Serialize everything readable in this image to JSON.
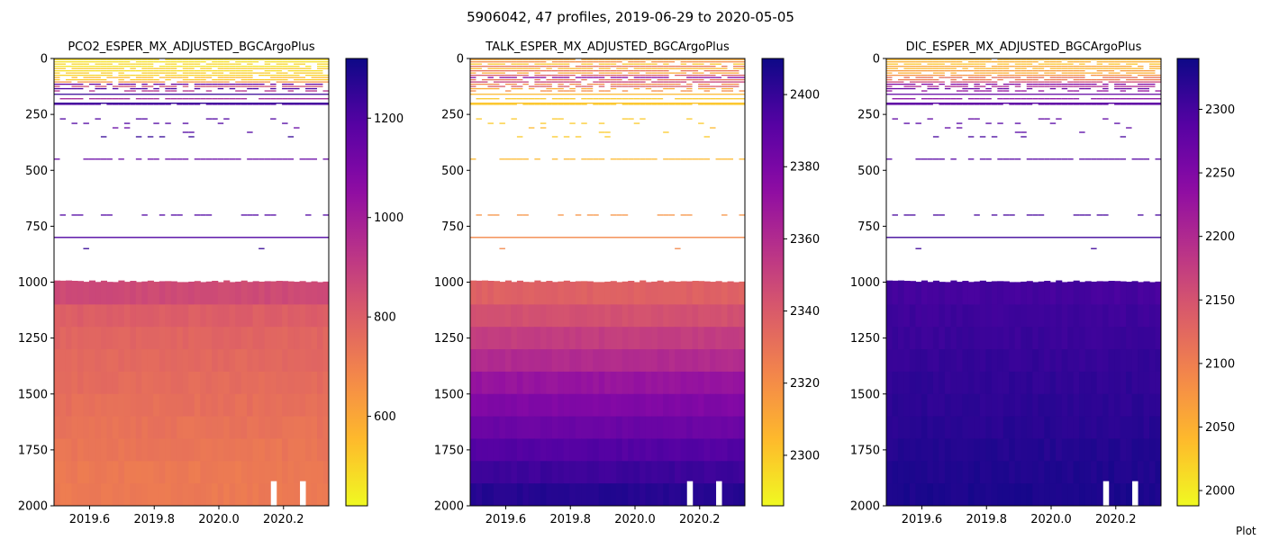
{
  "figure_title": "5906042, 47 profiles, 2019-06-29 to 2020-05-05",
  "footer_text": "Plot",
  "chart_data": [
    {
      "type": "heatmap",
      "title": "PCO2_ESPER_MX_ADJUSTED_BGCArgoPlus",
      "colormap": "plasma_r",
      "x_axis": {
        "label": "",
        "range": [
          2019.49,
          2020.34
        ],
        "ticks": [
          2019.6,
          2019.8,
          2020.0,
          2020.2
        ],
        "tick_labels": [
          "2019.6",
          "2019.8",
          "2020.0",
          "2020.2"
        ]
      },
      "y_axis": {
        "label": "",
        "range": [
          2000,
          0
        ],
        "inverted": true,
        "ticks": [
          0,
          250,
          500,
          750,
          1000,
          1250,
          1500,
          1750,
          2000
        ],
        "tick_labels": [
          "0",
          "250",
          "500",
          "750",
          "1000",
          "1250",
          "1500",
          "1750",
          "2000"
        ]
      },
      "colorbar": {
        "range": [
          420,
          1320
        ],
        "ticks": [
          600,
          800,
          1000,
          1200
        ],
        "tick_labels": [
          "600",
          "800",
          "1000",
          "1200"
        ]
      },
      "shallow_lines": [
        {
          "depth": 5,
          "value": 480,
          "coverage": 0.9
        },
        {
          "depth": 15,
          "value": 470,
          "coverage": 0.9
        },
        {
          "depth": 25,
          "value": 500,
          "coverage": 0.7
        },
        {
          "depth": 35,
          "value": 460,
          "coverage": 0.9
        },
        {
          "depth": 45,
          "value": 520,
          "coverage": 0.8
        },
        {
          "depth": 55,
          "value": 480,
          "coverage": 0.9
        },
        {
          "depth": 65,
          "value": 520,
          "coverage": 0.7
        },
        {
          "depth": 75,
          "value": 500,
          "coverage": 0.85
        },
        {
          "depth": 85,
          "value": 560,
          "coverage": 0.8
        },
        {
          "depth": 95,
          "value": 520,
          "coverage": 0.8
        },
        {
          "depth": 105,
          "value": 650,
          "coverage": 0.8
        },
        {
          "depth": 115,
          "value": 1150,
          "coverage": 0.7
        },
        {
          "depth": 125,
          "value": 850,
          "coverage": 0.8
        },
        {
          "depth": 135,
          "value": 1200,
          "coverage": 0.5
        },
        {
          "depth": 145,
          "value": 950,
          "coverage": 0.5
        },
        {
          "depth": 160,
          "value": 1250,
          "coverage": 1.0
        },
        {
          "depth": 180,
          "value": 1000,
          "coverage": 0.8
        },
        {
          "depth": 200,
          "value": 1250,
          "coverage": 1.0
        },
        {
          "depth": 205,
          "value": 1200,
          "coverage": 0.9
        }
      ],
      "sparse_lines": [
        {
          "depth": 270,
          "value": 1200,
          "coverage": 0.1
        },
        {
          "depth": 290,
          "value": 1200,
          "coverage": 0.1
        },
        {
          "depth": 310,
          "value": 1150,
          "coverage": 0.1
        },
        {
          "depth": 330,
          "value": 1200,
          "coverage": 0.1
        },
        {
          "depth": 350,
          "value": 1250,
          "coverage": 0.1
        },
        {
          "depth": 450,
          "value": 1150,
          "coverage": 0.75
        },
        {
          "depth": 700,
          "value": 1200,
          "coverage": 0.35
        },
        {
          "depth": 800,
          "value": 1200,
          "coverage": 1.0
        },
        {
          "depth": 850,
          "value": 1250,
          "coverage": 0.05
        }
      ],
      "deep_layers": [
        {
          "top": 1000,
          "bottom": 1100,
          "value": 860
        },
        {
          "top": 1100,
          "bottom": 1200,
          "value": 800
        },
        {
          "top": 1200,
          "bottom": 1300,
          "value": 780
        },
        {
          "top": 1300,
          "bottom": 1400,
          "value": 770
        },
        {
          "top": 1400,
          "bottom": 1500,
          "value": 760
        },
        {
          "top": 1500,
          "bottom": 1600,
          "value": 750
        },
        {
          "top": 1600,
          "bottom": 1700,
          "value": 740
        },
        {
          "top": 1700,
          "bottom": 1800,
          "value": 730
        },
        {
          "top": 1800,
          "bottom": 1900,
          "value": 720
        },
        {
          "top": 1900,
          "bottom": 2000,
          "value": 720
        }
      ],
      "missing_columns": [
        2020.17,
        2020.26
      ]
    },
    {
      "type": "heatmap",
      "title": "TALK_ESPER_MX_ADJUSTED_BGCArgoPlus",
      "colormap": "plasma_r",
      "x_axis": {
        "label": "",
        "range": [
          2019.49,
          2020.34
        ],
        "ticks": [
          2019.6,
          2019.8,
          2020.0,
          2020.2
        ],
        "tick_labels": [
          "2019.6",
          "2019.8",
          "2020.0",
          "2020.2"
        ]
      },
      "y_axis": {
        "label": "",
        "range": [
          2000,
          0
        ],
        "inverted": true,
        "ticks": [
          0,
          250,
          500,
          750,
          1000,
          1250,
          1500,
          1750,
          2000
        ],
        "tick_labels": [
          "0",
          "250",
          "500",
          "750",
          "1000",
          "1250",
          "1500",
          "1750",
          "2000"
        ]
      },
      "colorbar": {
        "range": [
          2286,
          2410
        ],
        "ticks": [
          2300,
          2320,
          2340,
          2360,
          2380,
          2400
        ],
        "tick_labels": [
          "2300",
          "2320",
          "2340",
          "2360",
          "2380",
          "2400"
        ]
      },
      "shallow_lines": [
        {
          "depth": 5,
          "value": 2310,
          "coverage": 0.9
        },
        {
          "depth": 15,
          "value": 2320,
          "coverage": 0.9
        },
        {
          "depth": 25,
          "value": 2300,
          "coverage": 0.7
        },
        {
          "depth": 35,
          "value": 2330,
          "coverage": 0.9
        },
        {
          "depth": 45,
          "value": 2305,
          "coverage": 0.8
        },
        {
          "depth": 55,
          "value": 2330,
          "coverage": 0.9
        },
        {
          "depth": 65,
          "value": 2310,
          "coverage": 0.7
        },
        {
          "depth": 75,
          "value": 2340,
          "coverage": 0.85
        },
        {
          "depth": 85,
          "value": 2375,
          "coverage": 0.8
        },
        {
          "depth": 95,
          "value": 2330,
          "coverage": 0.8
        },
        {
          "depth": 105,
          "value": 2350,
          "coverage": 0.8
        },
        {
          "depth": 115,
          "value": 2320,
          "coverage": 0.7
        },
        {
          "depth": 125,
          "value": 2340,
          "coverage": 0.8
        },
        {
          "depth": 135,
          "value": 2310,
          "coverage": 0.5
        },
        {
          "depth": 145,
          "value": 2320,
          "coverage": 0.5
        },
        {
          "depth": 160,
          "value": 2305,
          "coverage": 1.0
        },
        {
          "depth": 180,
          "value": 2300,
          "coverage": 0.8
        },
        {
          "depth": 200,
          "value": 2302,
          "coverage": 1.0
        },
        {
          "depth": 205,
          "value": 2300,
          "coverage": 0.9
        }
      ],
      "sparse_lines": [
        {
          "depth": 270,
          "value": 2300,
          "coverage": 0.1
        },
        {
          "depth": 290,
          "value": 2300,
          "coverage": 0.1
        },
        {
          "depth": 310,
          "value": 2305,
          "coverage": 0.1
        },
        {
          "depth": 330,
          "value": 2300,
          "coverage": 0.1
        },
        {
          "depth": 350,
          "value": 2300,
          "coverage": 0.1
        },
        {
          "depth": 450,
          "value": 2305,
          "coverage": 0.75
        },
        {
          "depth": 700,
          "value": 2318,
          "coverage": 0.35
        },
        {
          "depth": 800,
          "value": 2322,
          "coverage": 1.0
        },
        {
          "depth": 850,
          "value": 2322,
          "coverage": 0.05
        }
      ],
      "deep_layers": [
        {
          "top": 1000,
          "bottom": 1100,
          "value": 2337
        },
        {
          "top": 1100,
          "bottom": 1200,
          "value": 2344
        },
        {
          "top": 1200,
          "bottom": 1300,
          "value": 2352
        },
        {
          "top": 1300,
          "bottom": 1400,
          "value": 2360
        },
        {
          "top": 1400,
          "bottom": 1500,
          "value": 2370
        },
        {
          "top": 1500,
          "bottom": 1600,
          "value": 2378
        },
        {
          "top": 1600,
          "bottom": 1700,
          "value": 2385
        },
        {
          "top": 1700,
          "bottom": 1800,
          "value": 2392
        },
        {
          "top": 1800,
          "bottom": 1900,
          "value": 2398
        },
        {
          "top": 1900,
          "bottom": 2000,
          "value": 2404
        }
      ],
      "missing_columns": [
        2020.17,
        2020.26
      ]
    },
    {
      "type": "heatmap",
      "title": "DIC_ESPER_MX_ADJUSTED_BGCArgoPlus",
      "colormap": "plasma_r",
      "x_axis": {
        "label": "",
        "range": [
          2019.49,
          2020.34
        ],
        "ticks": [
          2019.6,
          2019.8,
          2020.0,
          2020.2
        ],
        "tick_labels": [
          "2019.6",
          "2019.8",
          "2020.0",
          "2020.2"
        ]
      },
      "y_axis": {
        "label": "",
        "range": [
          2000,
          0
        ],
        "inverted": true,
        "ticks": [
          0,
          250,
          500,
          750,
          1000,
          1250,
          1500,
          1750,
          2000
        ],
        "tick_labels": [
          "0",
          "250",
          "500",
          "750",
          "1000",
          "1250",
          "1500",
          "1750",
          "2000"
        ]
      },
      "colorbar": {
        "range": [
          1988,
          2340
        ],
        "ticks": [
          2000,
          2050,
          2100,
          2150,
          2200,
          2250,
          2300
        ],
        "tick_labels": [
          "2000",
          "2050",
          "2100",
          "2150",
          "2200",
          "2250",
          "2300"
        ]
      },
      "shallow_lines": [
        {
          "depth": 5,
          "value": 2040,
          "coverage": 0.9
        },
        {
          "depth": 15,
          "value": 2050,
          "coverage": 0.9
        },
        {
          "depth": 25,
          "value": 2030,
          "coverage": 0.7
        },
        {
          "depth": 35,
          "value": 2060,
          "coverage": 0.9
        },
        {
          "depth": 45,
          "value": 2040,
          "coverage": 0.8
        },
        {
          "depth": 55,
          "value": 2070,
          "coverage": 0.9
        },
        {
          "depth": 65,
          "value": 2050,
          "coverage": 0.7
        },
        {
          "depth": 75,
          "value": 2080,
          "coverage": 0.85
        },
        {
          "depth": 85,
          "value": 2120,
          "coverage": 0.8
        },
        {
          "depth": 95,
          "value": 2100,
          "coverage": 0.8
        },
        {
          "depth": 105,
          "value": 2160,
          "coverage": 0.8
        },
        {
          "depth": 115,
          "value": 2250,
          "coverage": 0.7
        },
        {
          "depth": 125,
          "value": 2200,
          "coverage": 0.8
        },
        {
          "depth": 135,
          "value": 2270,
          "coverage": 0.5
        },
        {
          "depth": 145,
          "value": 2230,
          "coverage": 0.5
        },
        {
          "depth": 160,
          "value": 2280,
          "coverage": 1.0
        },
        {
          "depth": 180,
          "value": 2240,
          "coverage": 0.8
        },
        {
          "depth": 200,
          "value": 2285,
          "coverage": 1.0
        },
        {
          "depth": 205,
          "value": 2280,
          "coverage": 0.9
        }
      ],
      "sparse_lines": [
        {
          "depth": 270,
          "value": 2280,
          "coverage": 0.1
        },
        {
          "depth": 290,
          "value": 2290,
          "coverage": 0.1
        },
        {
          "depth": 310,
          "value": 2280,
          "coverage": 0.1
        },
        {
          "depth": 330,
          "value": 2290,
          "coverage": 0.1
        },
        {
          "depth": 350,
          "value": 2300,
          "coverage": 0.1
        },
        {
          "depth": 450,
          "value": 2290,
          "coverage": 0.75
        },
        {
          "depth": 700,
          "value": 2300,
          "coverage": 0.35
        },
        {
          "depth": 800,
          "value": 2305,
          "coverage": 1.0
        },
        {
          "depth": 850,
          "value": 2305,
          "coverage": 0.05
        }
      ],
      "deep_layers": [
        {
          "top": 1000,
          "bottom": 1100,
          "value": 2300
        },
        {
          "top": 1100,
          "bottom": 1200,
          "value": 2305
        },
        {
          "top": 1200,
          "bottom": 1300,
          "value": 2308
        },
        {
          "top": 1300,
          "bottom": 1400,
          "value": 2312
        },
        {
          "top": 1400,
          "bottom": 1500,
          "value": 2315
        },
        {
          "top": 1500,
          "bottom": 1600,
          "value": 2318
        },
        {
          "top": 1600,
          "bottom": 1700,
          "value": 2321
        },
        {
          "top": 1700,
          "bottom": 1800,
          "value": 2324
        },
        {
          "top": 1800,
          "bottom": 1900,
          "value": 2327
        },
        {
          "top": 1900,
          "bottom": 2000,
          "value": 2330
        }
      ],
      "missing_columns": [
        2020.17,
        2020.26
      ]
    }
  ]
}
